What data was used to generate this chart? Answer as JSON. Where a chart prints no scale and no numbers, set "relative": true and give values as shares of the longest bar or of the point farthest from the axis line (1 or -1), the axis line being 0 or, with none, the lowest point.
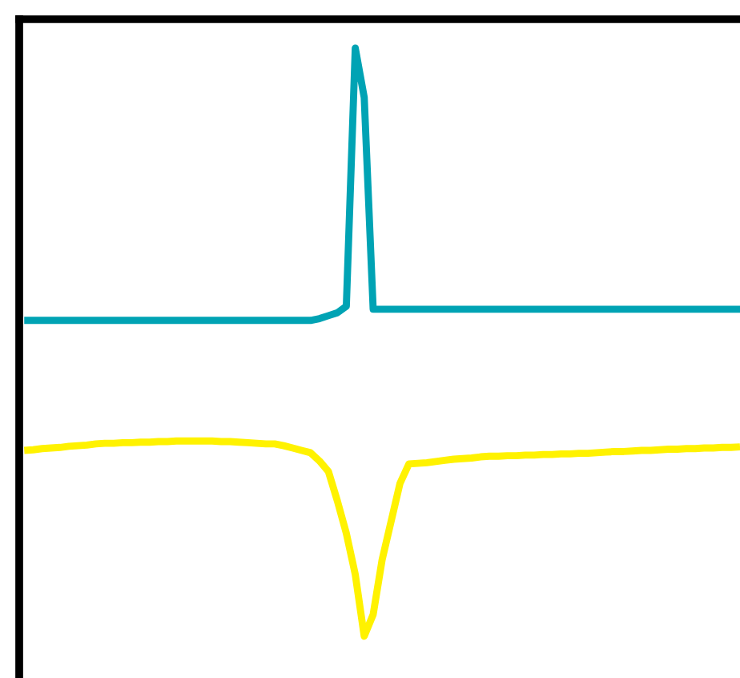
{
  "chart_data": {
    "type": "line",
    "relative": true,
    "marker": "none",
    "line_style": "solid",
    "categories": [
      null,
      null,
      null,
      null,
      null,
      null,
      null,
      null,
      null,
      null,
      null,
      null,
      null,
      null,
      null,
      null,
      null,
      null,
      null,
      null,
      null,
      null,
      null,
      null,
      null,
      null,
      null,
      null,
      null,
      null,
      null,
      null,
      null,
      null,
      null,
      null,
      null,
      null,
      null,
      null,
      null,
      null,
      null,
      null,
      null,
      null,
      null,
      null,
      null,
      null,
      null,
      null,
      null,
      null,
      null,
      null,
      null,
      null,
      null,
      null,
      null,
      null,
      null,
      null,
      null,
      null,
      null,
      null,
      null,
      null,
      null,
      null,
      null,
      null,
      null,
      null,
      null,
      null,
      null,
      null,
      null
    ],
    "series": [
      {
        "color": "#00a3b4",
        "values": [
          0.537,
          0.537,
          0.537,
          0.537,
          0.537,
          0.537,
          0.537,
          0.537,
          0.537,
          0.537,
          0.537,
          0.537,
          0.537,
          0.537,
          0.537,
          0.537,
          0.537,
          0.537,
          0.537,
          0.537,
          0.537,
          0.537,
          0.537,
          0.537,
          0.537,
          0.537,
          0.537,
          0.537,
          0.537,
          0.537,
          0.537,
          0.537,
          0.537,
          0.54,
          0.545,
          0.55,
          0.561,
          1.0,
          0.916,
          0.556,
          0.556,
          0.556,
          0.556,
          0.556,
          0.556,
          0.556,
          0.556,
          0.556,
          0.556,
          0.556,
          0.556,
          0.556,
          0.556,
          0.556,
          0.556,
          0.556,
          0.556,
          0.556,
          0.556,
          0.556,
          0.556,
          0.556,
          0.556,
          0.556,
          0.556,
          0.556,
          0.556,
          0.556,
          0.556,
          0.556,
          0.556,
          0.556,
          0.556,
          0.556,
          0.556,
          0.556,
          0.556,
          0.556,
          0.556,
          0.556,
          0.556
        ]
      },
      {
        "color": "#fff200",
        "values": [
          0.316,
          0.317,
          0.319,
          0.32,
          0.321,
          0.323,
          0.324,
          0.325,
          0.327,
          0.328,
          0.328,
          0.329,
          0.329,
          0.33,
          0.33,
          0.331,
          0.331,
          0.332,
          0.332,
          0.332,
          0.332,
          0.332,
          0.331,
          0.331,
          0.33,
          0.329,
          0.328,
          0.327,
          0.327,
          0.324,
          0.32,
          0.316,
          0.312,
          0.298,
          0.28,
          0.23,
          0.175,
          0.105,
          0.0,
          0.037,
          0.13,
          0.195,
          0.26,
          0.293,
          0.294,
          0.295,
          0.297,
          0.299,
          0.301,
          0.302,
          0.303,
          0.305,
          0.306,
          0.306,
          0.307,
          0.307,
          0.308,
          0.308,
          0.309,
          0.309,
          0.31,
          0.31,
          0.311,
          0.311,
          0.312,
          0.313,
          0.314,
          0.314,
          0.315,
          0.316,
          0.316,
          0.317,
          0.318,
          0.318,
          0.319,
          0.319,
          0.32,
          0.32,
          0.321,
          0.321,
          0.322
        ]
      }
    ]
  }
}
